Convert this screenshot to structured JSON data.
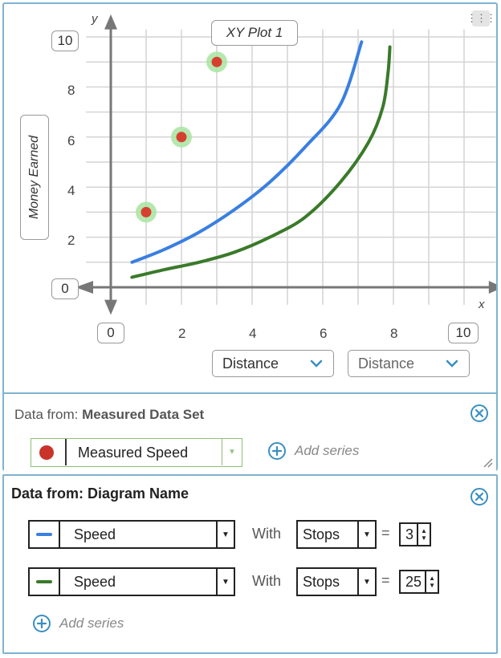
{
  "plot": {
    "title": "XY Plot 1",
    "y_axis_letter": "y",
    "x_axis_letter": "x",
    "ylabel": "Money Earned",
    "y_max_box": "10",
    "y_min_box": "0",
    "x_min_box": "0",
    "x_max_box": "10",
    "x_ticks": [
      "2",
      "4",
      "6",
      "8"
    ],
    "y_ticks": [
      "2",
      "4",
      "6",
      "8"
    ],
    "x_dropdowns": [
      "Distance",
      "Distance"
    ]
  },
  "chart_data": {
    "type": "scatter",
    "title": "XY Plot 1",
    "xlabel": "Distance",
    "ylabel": "Money Earned",
    "xlim": [
      0,
      10
    ],
    "ylim": [
      0,
      10
    ],
    "grid": true,
    "series": [
      {
        "name": "Measured Speed",
        "kind": "points",
        "color": "#d6402f",
        "points": [
          [
            1,
            3
          ],
          [
            2,
            6
          ],
          [
            3,
            9
          ]
        ]
      },
      {
        "name": "Speed",
        "kind": "line",
        "color": "#3a7fe0",
        "points": [
          [
            0.6,
            1.0
          ],
          [
            1.5,
            1.5
          ],
          [
            2.5,
            2.2
          ],
          [
            3.5,
            3.1
          ],
          [
            4.5,
            4.2
          ],
          [
            5.5,
            5.6
          ],
          [
            6.5,
            7.3
          ],
          [
            7.1,
            9.8
          ]
        ]
      },
      {
        "name": "Speed",
        "kind": "line",
        "color": "#3a7a2a",
        "points": [
          [
            0.6,
            0.4
          ],
          [
            1.5,
            0.7
          ],
          [
            2.5,
            1.0
          ],
          [
            3.5,
            1.4
          ],
          [
            4.5,
            2.0
          ],
          [
            5.5,
            2.8
          ],
          [
            6.5,
            4.2
          ],
          [
            7.3,
            5.8
          ],
          [
            7.7,
            7.2
          ],
          [
            7.85,
            8.6
          ],
          [
            7.9,
            9.6
          ]
        ]
      }
    ]
  },
  "panel1": {
    "prefix": "Data from:",
    "source": "Measured Data Set",
    "series_label": "Measured Speed",
    "add_series": "Add series",
    "dot_color": "#c9332a"
  },
  "panel2": {
    "title": "Data from: Diagram Name",
    "rows": [
      {
        "line_color": "#3a7fe0",
        "series": "Speed",
        "with": "With",
        "param": "Stops",
        "eq": "=",
        "value": "3"
      },
      {
        "line_color": "#3a7a2a",
        "series": "Speed",
        "with": "With",
        "param": "Stops",
        "eq": "=",
        "value": "25"
      }
    ],
    "add_series": "Add series"
  }
}
